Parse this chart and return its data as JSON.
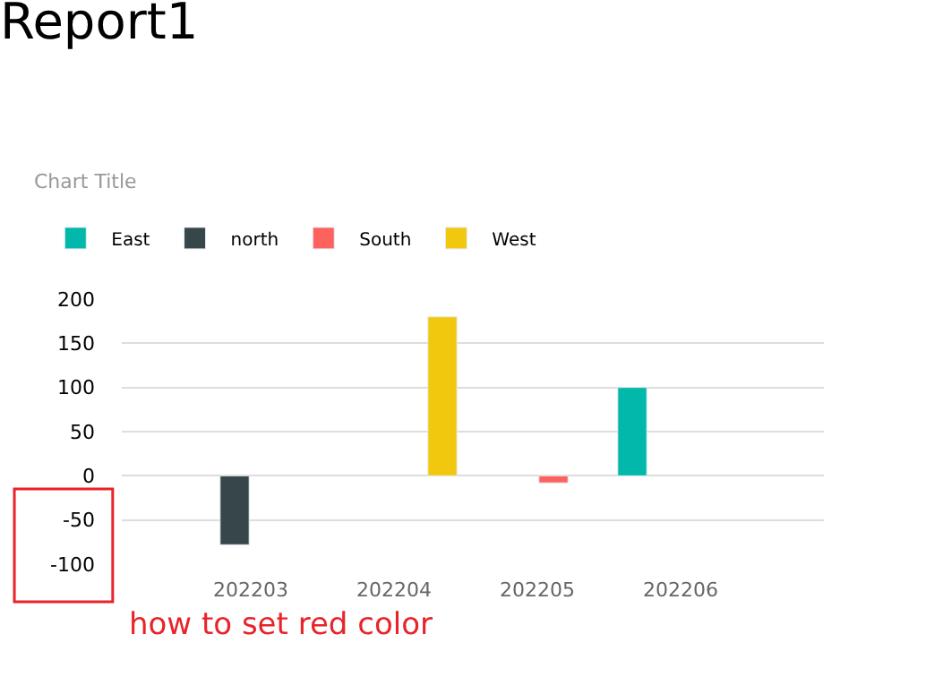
{
  "chart_data": {
    "type": "bar",
    "title": "Report1",
    "subtitle": "Chart Title",
    "categories": [
      "202203",
      "202204",
      "202205",
      "202206"
    ],
    "series": [
      {
        "name": "East",
        "color": "#01b8aa",
        "values": [
          null,
          null,
          null,
          100
        ]
      },
      {
        "name": "north",
        "color": "#374649",
        "values": [
          -78,
          null,
          null,
          null
        ]
      },
      {
        "name": "South",
        "color": "#fd625e",
        "values": [
          null,
          null,
          -8,
          null
        ]
      },
      {
        "name": "West",
        "color": "#f2c80f",
        "values": [
          null,
          180,
          null,
          null
        ]
      }
    ],
    "ylim": [
      -100,
      200
    ],
    "yticks": [
      -100,
      -50,
      0,
      50,
      100,
      150,
      200
    ],
    "grid": "y",
    "legend": "top left",
    "annotations": [
      "how to set red color"
    ]
  }
}
